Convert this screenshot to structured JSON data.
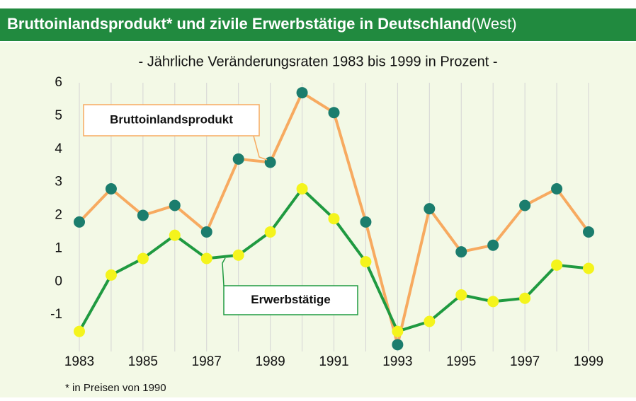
{
  "chart_data": {
    "type": "line",
    "title": "Bruttoinlandsprodukt* und zivile Erwerbstätige in Deutschland",
    "title_suffix": "(West)",
    "subtitle": "- Jährliche Veränderungsraten 1983 bis 1999 in Prozent -",
    "footnote": "* in Preisen von 1990",
    "x": [
      1983,
      1984,
      1985,
      1986,
      1987,
      1988,
      1989,
      1990,
      1991,
      1992,
      1993,
      1994,
      1995,
      1996,
      1997,
      1998,
      1999
    ],
    "series": [
      {
        "name": "Bruttoinlandsprodukt",
        "color": "#f7aa60",
        "marker_color": "#1b7d6d",
        "values": [
          1.8,
          2.8,
          2.0,
          2.3,
          1.5,
          3.7,
          3.6,
          5.7,
          5.1,
          1.8,
          -1.9,
          2.2,
          0.9,
          1.1,
          2.3,
          2.8,
          1.5
        ]
      },
      {
        "name": "Erwerbstätige",
        "color": "#1f9a40",
        "marker_color": "#f4f41c",
        "values": [
          -1.5,
          0.2,
          0.7,
          1.4,
          0.7,
          0.8,
          1.5,
          2.8,
          1.9,
          0.6,
          -1.5,
          -1.2,
          -0.4,
          -0.6,
          -0.5,
          0.5,
          0.4
        ]
      }
    ],
    "xlim": [
      1983,
      1999
    ],
    "xticks": [
      1983,
      1985,
      1987,
      1989,
      1991,
      1993,
      1995,
      1997,
      1999
    ],
    "ylim": [
      -2,
      6
    ],
    "yticks": [
      -1,
      0,
      1,
      2,
      3,
      4,
      5,
      6
    ],
    "grid": true
  }
}
